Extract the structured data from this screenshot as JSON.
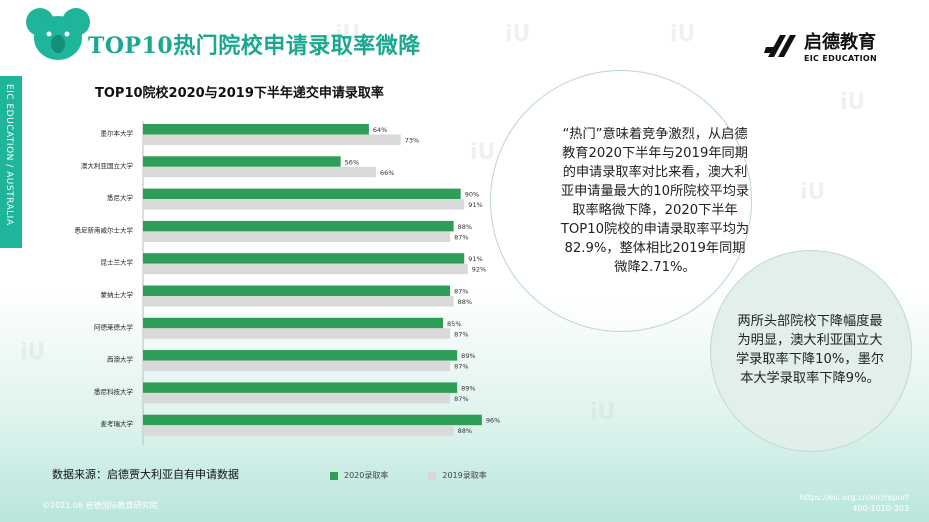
{
  "header": {
    "title": "TOP10热门院校申请录取率微降",
    "brand_name": "启德教育",
    "brand_sub": "EIC EDUCATION"
  },
  "side_band": {
    "text": "EIC EDUCATION / AUSTRALIA"
  },
  "chart_data": {
    "type": "bar",
    "orientation": "horizontal",
    "title": "TOP10院校2020与2019下半年递交申请录取率",
    "categories": [
      "墨尔本大学",
      "澳大利亚国立大学",
      "悉尼大学",
      "悉尼新南威尔士大学",
      "昆士兰大学",
      "蒙纳士大学",
      "阿德莱德大学",
      "西澳大学",
      "悉尼科技大学",
      "麦考瑞大学"
    ],
    "series": [
      {
        "name": "2020录取率",
        "values": [
          64,
          56,
          90,
          88,
          91,
          87,
          85,
          89,
          89,
          96
        ],
        "color": "#2e9e57"
      },
      {
        "name": "2019录取率",
        "values": [
          73,
          66,
          91,
          87,
          92,
          88,
          87,
          87,
          87,
          88
        ],
        "color": "#d9d9d9"
      }
    ],
    "value_suffix": "%",
    "xlim": [
      0,
      100
    ],
    "grid": false,
    "legend_position": "bottom"
  },
  "bubbles": {
    "big_text": "“热门”意味着竞争激烈，从启德教育2020下半年与2019年同期的申请录取率对比来看，澳大利亚申请量最大的10所院校平均录取率略微下降，2020下半年TOP10院校的申请录取率平均为82.9%，整体相比2019年同期微降2.71%。",
    "small_text": "两所头部院校下降幅度最为明显，澳大利亚国立大学录取率下降10%，墨尔本大学录取率下降9%。"
  },
  "source": "数据来源：启德贾大利亚自有申请数据",
  "footer": {
    "copyright": "©2021.08 启德国际教育研究院",
    "url": "https://eic.org.cn/eic/report",
    "phone": "400-1010-303"
  }
}
